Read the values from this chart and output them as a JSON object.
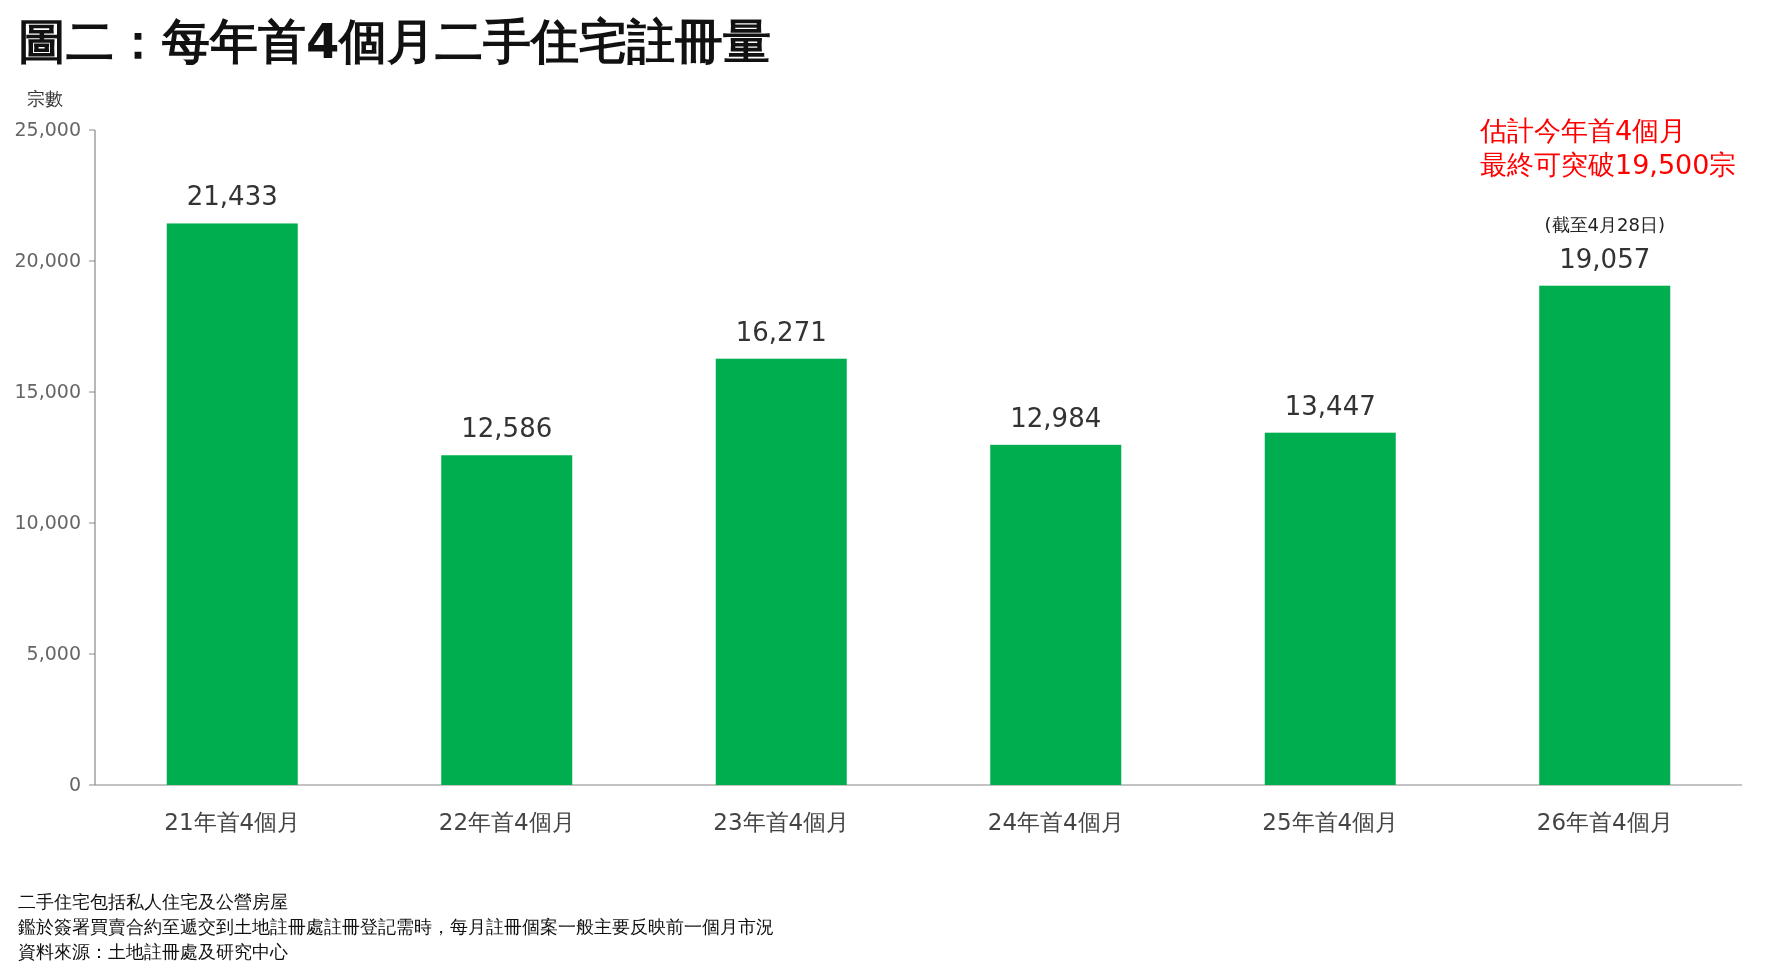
{
  "chart_data": {
    "type": "bar",
    "title": "圖二：每年首4個月二手住宅註冊量",
    "ylabel": "宗數",
    "categories": [
      "21年首4個月",
      "22年首4個月",
      "23年首4個月",
      "24年首4個月",
      "25年首4個月",
      "26年首4個月"
    ],
    "values": [
      21433,
      12586,
      16271,
      12984,
      13447,
      19057
    ],
    "color": "#00ad4f",
    "ylim": [
      0,
      25000
    ],
    "yticks": [
      {
        "value": 0,
        "label": "0"
      },
      {
        "value": 5000,
        "label": "5,000"
      },
      {
        "value": 10000,
        "label": "10,000"
      },
      {
        "value": 15000,
        "label": "15,000"
      },
      {
        "value": 20000,
        "label": "20,000"
      },
      {
        "value": 25000,
        "label": "25,000"
      }
    ],
    "value_labels": [
      "21,433",
      "12,586",
      "16,271",
      "12,984",
      "13,447",
      "19,057"
    ],
    "grid": false,
    "annotations": [
      "估計今年首4個月",
      "最終可突破19,500宗",
      {
        "text": "(截至4月28日)",
        "x": "26年首4個月",
        "y": 19057
      },
      "二手住宅包括私人住宅及公營房屋",
      "鑑於簽署買賣合約至遞交到土地註冊處註冊登記需時，每月註冊個案一般主要反映前一個月市況",
      "資料來源：土地註冊處及研究中心"
    ]
  }
}
